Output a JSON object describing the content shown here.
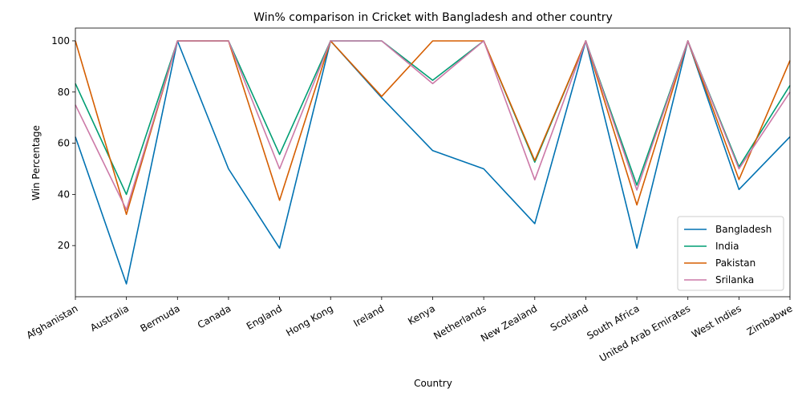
{
  "chart_data": {
    "type": "line",
    "title": "Win% comparison in Cricket with Bangladesh and other country",
    "xlabel": "Country",
    "ylabel": "Win Percentage",
    "categories": [
      "Afghanistan",
      "Australia",
      "Bermuda",
      "Canada",
      "England",
      "Hong Kong",
      "Ireland",
      "Kenya",
      "Netherlands",
      "New Zealand",
      "Scotland",
      "South Africa",
      "United Arab Emirates",
      "West Indies",
      "Zimbabwe"
    ],
    "ylim": [
      0,
      105
    ],
    "yticks": [
      20,
      40,
      60,
      80,
      100
    ],
    "grid": false,
    "legend_position": "lower right",
    "series": [
      {
        "name": "Bangladesh",
        "color": "#0072b2",
        "values": [
          62.5,
          5.0,
          100,
          50,
          19.0,
          100,
          77.8,
          57.1,
          50,
          28.6,
          100,
          19.0,
          100,
          41.9,
          62.5
        ]
      },
      {
        "name": "India",
        "color": "#009e73",
        "values": [
          83.3,
          40.0,
          100,
          100,
          55.6,
          100,
          100,
          84.6,
          100,
          52.6,
          100,
          43.6,
          100,
          50.8,
          82.6
        ]
      },
      {
        "name": "Pakistan",
        "color": "#d55e00",
        "values": [
          100,
          32.2,
          100,
          100,
          37.7,
          100,
          78.3,
          100,
          100,
          53.2,
          100,
          35.9,
          100,
          45.8,
          92.3
        ]
      },
      {
        "name": "Srilanka",
        "color": "#cc79a7",
        "values": [
          75.0,
          34.0,
          100,
          100,
          50.0,
          100,
          100,
          83.3,
          100,
          45.7,
          100,
          41.7,
          100,
          50.0,
          80.0
        ]
      }
    ]
  }
}
